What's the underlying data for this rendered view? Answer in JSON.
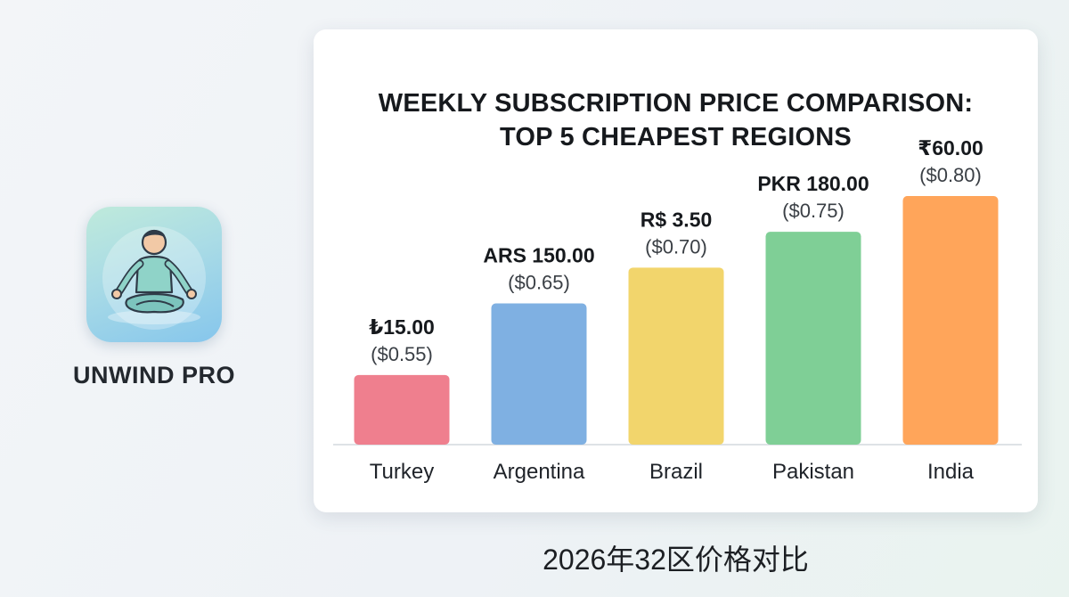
{
  "app": {
    "name": "UNWIND PRO",
    "icon": "meditation-person-icon"
  },
  "chart_data": {
    "type": "bar",
    "title_lines": [
      "WEEKLY SUBSCRIPTION PRICE COMPARISON:",
      "TOP 5 CHEAPEST REGIONS"
    ],
    "categories": [
      "Turkey",
      "Argentina",
      "Brazil",
      "Pakistan",
      "India"
    ],
    "values": [
      0.55,
      0.65,
      0.7,
      0.75,
      0.8
    ],
    "local_prices": [
      "₺15.00",
      "ARS 150.00",
      "R$ 3.50",
      "PKR 180.00",
      "₹60.00"
    ],
    "usd_labels": [
      "($0.55)",
      "($0.65)",
      "($0.70)",
      "($0.75)",
      "($0.80)"
    ],
    "colors": [
      "#ef7f8e",
      "#7fb0e2",
      "#f2d56c",
      "#7fcf96",
      "#ffa55a"
    ],
    "ylim": [
      0.5,
      0.8
    ],
    "xlabel": "",
    "ylabel": "",
    "grid": false,
    "legend": "none"
  },
  "footer": {
    "caption": "2026年32区价格对比"
  }
}
